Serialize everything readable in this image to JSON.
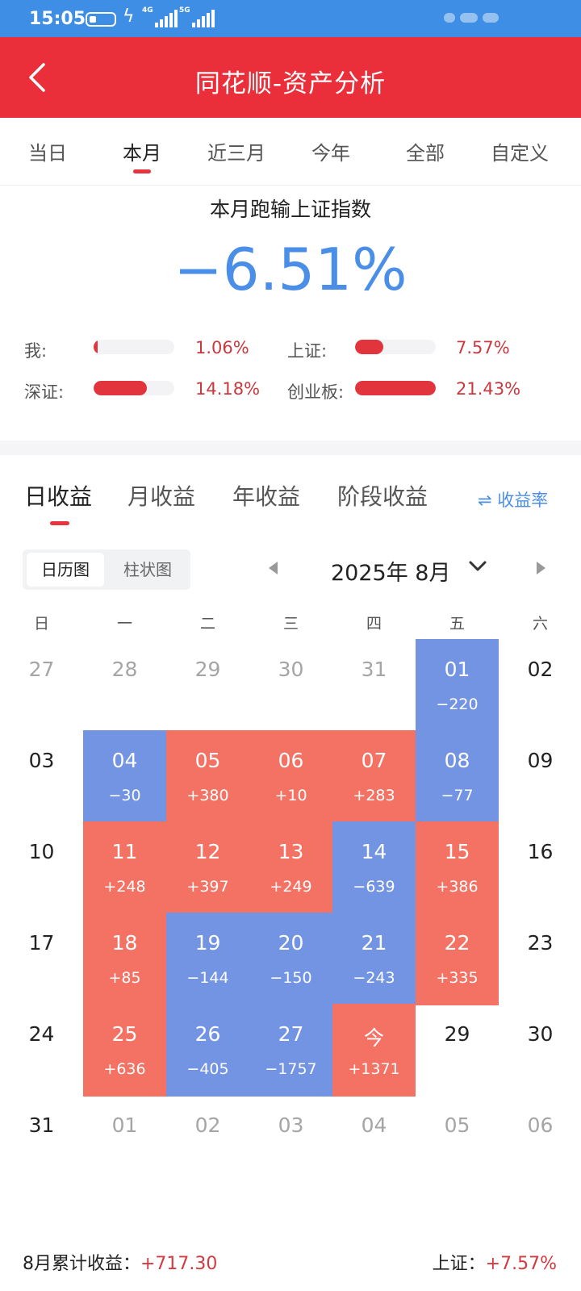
{
  "status_bar": {
    "time": "15:05",
    "network_1": "4G",
    "network_2": "5G"
  },
  "header": {
    "title": "同花顺-资产分析"
  },
  "period_tabs": [
    {
      "label": "当日",
      "active": false
    },
    {
      "label": "本月",
      "active": true
    },
    {
      "label": "近三月",
      "active": false
    },
    {
      "label": "今年",
      "active": false
    },
    {
      "label": "全部",
      "active": false
    },
    {
      "label": "自定义",
      "active": false
    }
  ],
  "comparison": {
    "title": "本月跑输上证指数",
    "value": "−6.51%",
    "value_color": "#4a8ee8",
    "stats": [
      {
        "label": "我:",
        "value": "1.06%",
        "level": 0.05
      },
      {
        "label": "上证:",
        "value": "7.57%",
        "level": 0.35
      },
      {
        "label": "深证:",
        "value": "14.18%",
        "level": 0.66
      },
      {
        "label": "创业板:",
        "value": "21.43%",
        "level": 1.0
      }
    ]
  },
  "earnings_tabs": [
    {
      "label": "日收益",
      "active": true
    },
    {
      "label": "月收益",
      "active": false
    },
    {
      "label": "年收益",
      "active": false
    },
    {
      "label": "阶段收益",
      "active": false
    }
  ],
  "rate_toggle": {
    "icon": "swap-arrows-icon",
    "label": "收益率"
  },
  "view_toggle": [
    {
      "label": "日历图",
      "active": true
    },
    {
      "label": "柱状图",
      "active": false
    }
  ],
  "calendar": {
    "month_label": "2025年 8月",
    "weekdays": [
      "日",
      "一",
      "二",
      "三",
      "四",
      "五",
      "六"
    ],
    "colors": {
      "gain": "#f47264",
      "loss": "#7394e2"
    },
    "weeks": [
      [
        {
          "day": "27",
          "type": "other"
        },
        {
          "day": "28",
          "type": "other"
        },
        {
          "day": "29",
          "type": "other"
        },
        {
          "day": "30",
          "type": "other"
        },
        {
          "day": "31",
          "type": "other"
        },
        {
          "day": "01",
          "value": "−220",
          "type": "loss"
        },
        {
          "day": "02",
          "type": "plain"
        }
      ],
      [
        {
          "day": "03",
          "type": "plain"
        },
        {
          "day": "04",
          "value": "−30",
          "type": "loss"
        },
        {
          "day": "05",
          "value": "+380",
          "type": "gain"
        },
        {
          "day": "06",
          "value": "+10",
          "type": "gain"
        },
        {
          "day": "07",
          "value": "+283",
          "type": "gain"
        },
        {
          "day": "08",
          "value": "−77",
          "type": "loss"
        },
        {
          "day": "09",
          "type": "plain"
        }
      ],
      [
        {
          "day": "10",
          "type": "plain"
        },
        {
          "day": "11",
          "value": "+248",
          "type": "gain"
        },
        {
          "day": "12",
          "value": "+397",
          "type": "gain"
        },
        {
          "day": "13",
          "value": "+249",
          "type": "gain"
        },
        {
          "day": "14",
          "value": "−639",
          "type": "loss"
        },
        {
          "day": "15",
          "value": "+386",
          "type": "gain"
        },
        {
          "day": "16",
          "type": "plain"
        }
      ],
      [
        {
          "day": "17",
          "type": "plain"
        },
        {
          "day": "18",
          "value": "+85",
          "type": "gain"
        },
        {
          "day": "19",
          "value": "−144",
          "type": "loss"
        },
        {
          "day": "20",
          "value": "−150",
          "type": "loss"
        },
        {
          "day": "21",
          "value": "−243",
          "type": "loss"
        },
        {
          "day": "22",
          "value": "+335",
          "type": "gain"
        },
        {
          "day": "23",
          "type": "plain"
        }
      ],
      [
        {
          "day": "24",
          "type": "plain"
        },
        {
          "day": "25",
          "value": "+636",
          "type": "gain"
        },
        {
          "day": "26",
          "value": "−405",
          "type": "loss"
        },
        {
          "day": "27",
          "value": "−1757",
          "type": "loss"
        },
        {
          "day": "今",
          "value": "+1371",
          "type": "gain"
        },
        {
          "day": "29",
          "type": "plain"
        },
        {
          "day": "30",
          "type": "plain"
        }
      ],
      [
        {
          "day": "31",
          "type": "plain"
        },
        {
          "day": "01",
          "type": "other"
        },
        {
          "day": "02",
          "type": "other"
        },
        {
          "day": "03",
          "type": "other"
        },
        {
          "day": "04",
          "type": "other"
        },
        {
          "day": "05",
          "type": "other"
        },
        {
          "day": "06",
          "type": "other"
        }
      ]
    ]
  },
  "footer": {
    "monthly_label": "8月累计收益：",
    "monthly_value": "+717.30",
    "index_label": "上证：",
    "index_value": "+7.57%"
  }
}
